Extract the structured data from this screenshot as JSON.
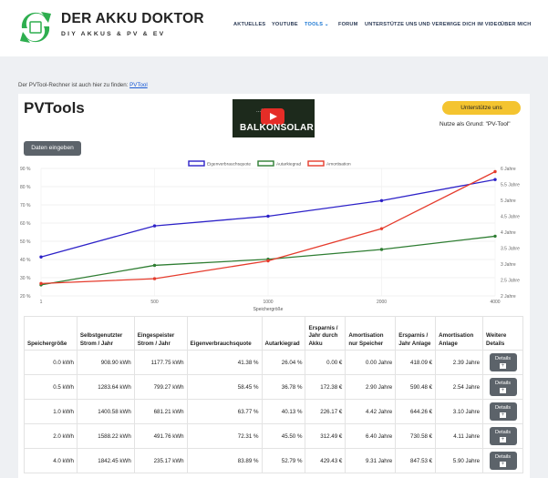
{
  "header": {
    "title": "DER AKKU DOKTOR",
    "subtitle": "DIY AKKUS & PV & EV",
    "nav": [
      {
        "label": "AKTUELLES"
      },
      {
        "label": "YOUTUBE"
      },
      {
        "label": "TOOLS ⌄"
      },
      {
        "label": "FORUM"
      },
      {
        "label": "UNTERSTÜTZE UNS UND VEREWIGE DICH IM VIDEO"
      },
      {
        "label": "ÜBER MICH"
      }
    ]
  },
  "intro": {
    "text": "Der PVTool-Rechner ist auch hier zu finden: ",
    "link": "PVTool"
  },
  "tool": {
    "title": "PVTools",
    "video_title": "...are ...",
    "video_text": "BALKONSOLAR",
    "support_button": "Unterstütze uns",
    "support_note": "Nutze als Grund: \"PV-Tool\"",
    "data_button": "Daten eingeben"
  },
  "chart_data": {
    "type": "line",
    "x": [
      "1",
      "500",
      "1000",
      "2000",
      "4000"
    ],
    "xlabel": "Speichergröße",
    "ylim": [
      20,
      90
    ],
    "y_ticks": [
      "20 %",
      "30 %",
      "40 %",
      "50 %",
      "60 %",
      "70 %",
      "80 %",
      "90 %"
    ],
    "y2lim": [
      2,
      6
    ],
    "y2_ticks": [
      "2 Jahre",
      "2.5 Jahre",
      "3 Jahre",
      "3.5 Jahre",
      "4 Jahre",
      "4.5 Jahre",
      "5 Jahre",
      "5.5 Jahre",
      "6 Jahre"
    ],
    "series": [
      {
        "name": "Eigenverbrauchsquote",
        "color": "#2d22c8",
        "axis": "left",
        "values": [
          41.38,
          58.45,
          63.77,
          72.31,
          83.89
        ]
      },
      {
        "name": "Autarkiegrad",
        "color": "#2e7d32",
        "axis": "left",
        "values": [
          26.04,
          36.78,
          40.13,
          45.5,
          52.79
        ]
      },
      {
        "name": "Amortisation",
        "color": "#e53b2c",
        "axis": "right",
        "values": [
          2.39,
          2.54,
          3.1,
          4.11,
          5.9
        ]
      }
    ]
  },
  "table": {
    "headers": [
      "Speichergröße",
      "Selbstgenutzter Strom / Jahr",
      "Eingespeister Strom / Jahr",
      "Eigenverbrauchsquote",
      "Autarkiegrad",
      "Ersparnis / Jahr durch Akku",
      "Amortisation nur Speicher",
      "Ersparnis / Jahr Anlage",
      "Amortisation Anlage",
      "Weitere Details"
    ],
    "rows": [
      [
        "0.0 kWh",
        "908.90 kWh",
        "1177.75 kWh",
        "41.38 %",
        "26.04 %",
        "0.00 €",
        "0.00 Jahre",
        "418.09 €",
        "2.39 Jahre"
      ],
      [
        "0.5 kWh",
        "1283.64 kWh",
        "799.27 kWh",
        "58.45 %",
        "36.78 %",
        "172.38 €",
        "2.90 Jahre",
        "590.48 €",
        "2.54 Jahre"
      ],
      [
        "1.0 kWh",
        "1400.58 kWh",
        "681.21 kWh",
        "63.77 %",
        "40.13 %",
        "226.17 €",
        "4.42 Jahre",
        "644.26 €",
        "3.10 Jahre"
      ],
      [
        "2.0 kWh",
        "1588.22 kWh",
        "491.76 kWh",
        "72.31 %",
        "45.50 %",
        "312.49 €",
        "6.40 Jahre",
        "730.58 €",
        "4.11 Jahre"
      ],
      [
        "4.0 kWh",
        "1842.45 kWh",
        "235.17 kWh",
        "83.89 %",
        "52.79 %",
        "429.43 €",
        "9.31 Jahre",
        "847.53 €",
        "5.90 Jahre"
      ]
    ],
    "details_label": "Details"
  }
}
